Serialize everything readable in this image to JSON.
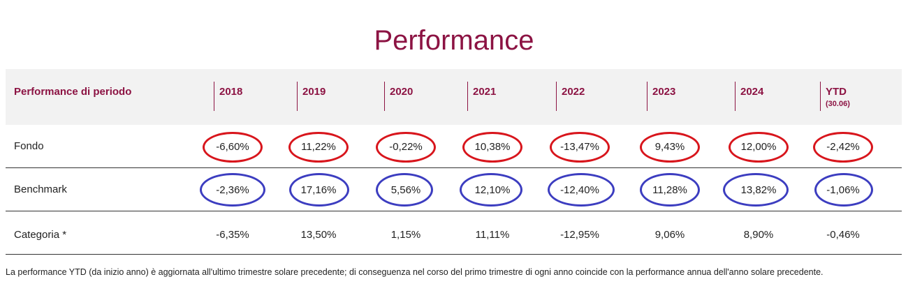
{
  "title": "Performance",
  "header": {
    "label": "Performance di periodo",
    "years": [
      "2018",
      "2019",
      "2020",
      "2021",
      "2022",
      "2023",
      "2024",
      "YTD"
    ],
    "ytd_sub": "(30.06)"
  },
  "rows": [
    {
      "label": "Fondo",
      "values": [
        "-6,60%",
        "11,22%",
        "-0,22%",
        "10,38%",
        "-13,47%",
        "9,43%",
        "12,00%",
        "-2,42%"
      ],
      "highlight": "red"
    },
    {
      "label": "Benchmark",
      "values": [
        "-2,36%",
        "17,16%",
        "5,56%",
        "12,10%",
        "-12,40%",
        "11,28%",
        "13,82%",
        "-1,06%"
      ],
      "highlight": "blue"
    },
    {
      "label": "Categoria *",
      "values": [
        "-6,35%",
        "13,50%",
        "1,15%",
        "11,11%",
        "-12,95%",
        "9,06%",
        "8,90%",
        "-0,46%"
      ],
      "highlight": "none"
    }
  ],
  "note": "La performance YTD (da inizio anno) è aggiornata all'ultimo trimestre solare precedente; di conseguenza nel corso del primo trimestre di ogni anno coincide con la performance annua dell'anno solare precedente.",
  "colors": {
    "accent": "#8c1343",
    "red_circle": "#d8151c",
    "blue_circle": "#3c3dc0",
    "header_bg": "#f2f2f2"
  }
}
